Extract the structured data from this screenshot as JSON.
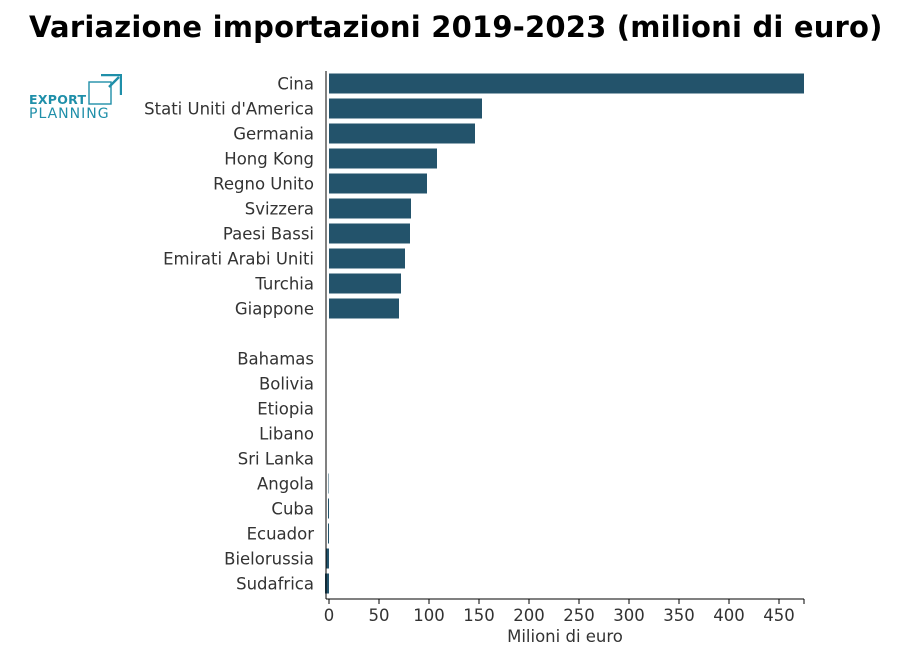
{
  "title": "Variazione importazioni 2019-2023 (milioni di euro)",
  "logo": {
    "line1": "EXPORT",
    "line2": "PLANNING"
  },
  "chart_data": {
    "type": "bar",
    "orientation": "horizontal",
    "categories": [
      "Cina",
      "Stati Uniti d'America",
      "Germania",
      "Hong Kong",
      "Regno Unito",
      "Svizzera",
      "Paesi Bassi",
      "Emirati Arabi Uniti",
      "Turchia",
      "Giappone",
      "",
      "Bahamas",
      "Bolivia",
      "Etiopia",
      "Libano",
      "Sri Lanka",
      "Angola",
      "Cuba",
      "Ecuador",
      "Bielorussia",
      "Sudafrica"
    ],
    "values": [
      475,
      153,
      146,
      108,
      98,
      82,
      81,
      76,
      72,
      70,
      null,
      0,
      0,
      0,
      0,
      0,
      -0.5,
      -1,
      -1,
      -3,
      -4
    ],
    "xlabel": "Milioni di euro",
    "ylabel": "",
    "xlim": [
      -3,
      475
    ],
    "xticks": [
      0,
      50,
      100,
      150,
      200,
      250,
      300,
      350,
      400,
      450
    ],
    "bar_color": "#23536b",
    "grid": false,
    "legend": "none"
  }
}
